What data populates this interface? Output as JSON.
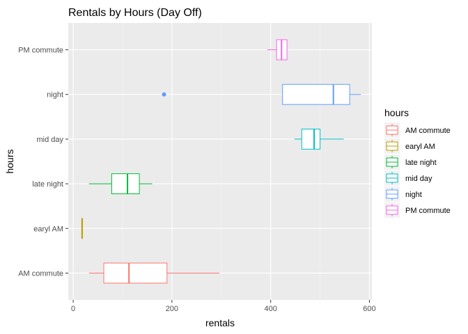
{
  "chart_data": {
    "type": "boxplot",
    "orientation": "horizontal",
    "title": "Rentals by Hours (Day Off)",
    "xlabel": "rentals",
    "ylabel": "hours",
    "xlim": [
      -10,
      605
    ],
    "xticks": [
      0,
      200,
      400,
      600
    ],
    "xtick_labels": [
      "0",
      "200",
      "400",
      "600"
    ],
    "grid": true,
    "legend": {
      "title": "hours",
      "position": "right"
    },
    "categories": [
      "AM commute",
      "earyl AM",
      "late night",
      "mid day",
      "night",
      "PM commute"
    ],
    "series": [
      {
        "name": "AM commute",
        "color": "#F8766D",
        "min": 32,
        "q1": 62,
        "median": 113,
        "q3": 190,
        "max": 296,
        "outliers": []
      },
      {
        "name": "earyl AM",
        "color": "#B79F00",
        "min": 18,
        "q1": 18,
        "median": 18,
        "q3": 18,
        "max": 18,
        "outliers": []
      },
      {
        "name": "late night",
        "color": "#00BA38",
        "min": 32,
        "q1": 78,
        "median": 110,
        "q3": 134,
        "max": 160,
        "outliers": []
      },
      {
        "name": "mid day",
        "color": "#00BFC4",
        "min": 448,
        "q1": 463,
        "median": 488,
        "q3": 500,
        "max": 548,
        "outliers": []
      },
      {
        "name": "night",
        "color": "#619CFF",
        "min": 424,
        "q1": 424,
        "median": 527,
        "q3": 560,
        "max": 583,
        "outliers": [
          184
        ]
      },
      {
        "name": "PM commute",
        "color": "#F564E3",
        "min": 393,
        "q1": 412,
        "median": 422,
        "q3": 433,
        "max": 433,
        "outliers": []
      }
    ]
  }
}
